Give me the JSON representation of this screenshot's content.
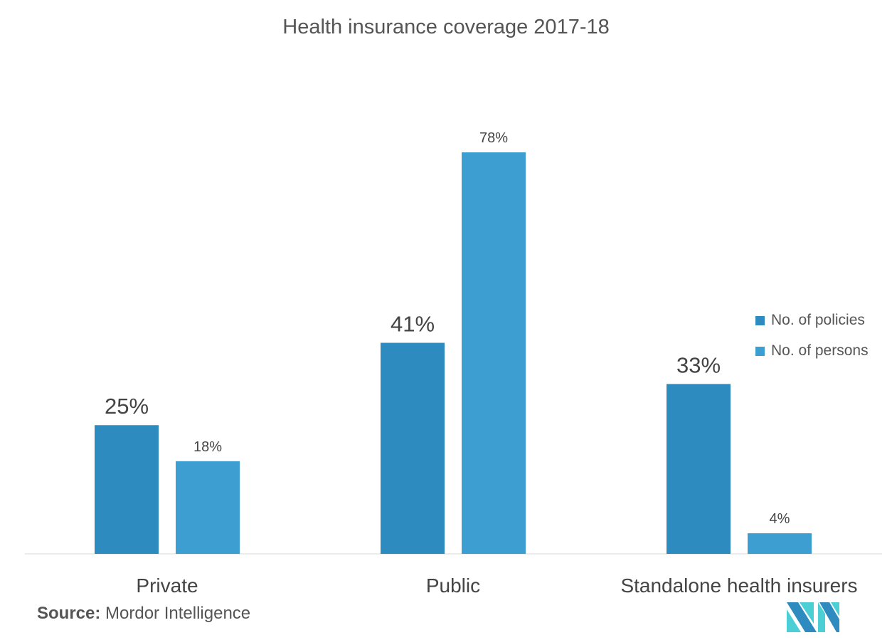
{
  "chart_data": {
    "type": "bar",
    "title": "Health insurance coverage 2017-18",
    "categories": [
      "Private",
      "Public",
      "Standalone health insurers"
    ],
    "series": [
      {
        "name": "No. of policies",
        "values": [
          25,
          41,
          33
        ],
        "labels": [
          "25%",
          "41%",
          "33%"
        ],
        "color": "#2e8bc0"
      },
      {
        "name": "No. of persons",
        "values": [
          18,
          78,
          4
        ],
        "labels": [
          "18%",
          "78%",
          "4%"
        ],
        "color": "#3d9fd1"
      }
    ],
    "unit": "%",
    "ylim": [
      0,
      78
    ],
    "grid": false,
    "legend_position": "right"
  },
  "source": {
    "label": "Source:",
    "text": "Mordor Intelligence"
  },
  "logo": {
    "name": "mordor-intelligence-logo",
    "colors": [
      "#2e8bc0",
      "#4ccfd4"
    ]
  }
}
